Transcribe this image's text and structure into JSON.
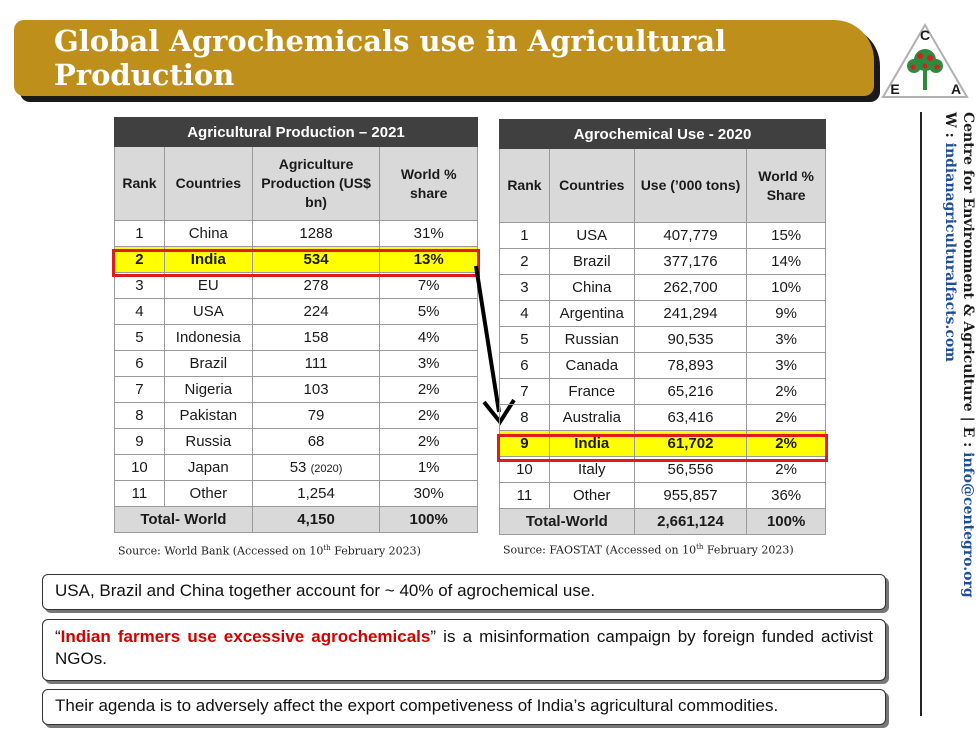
{
  "header": {
    "title": "Global Agrochemicals use in Agricultural Production"
  },
  "logo": {
    "letters": [
      "C",
      "E",
      "A"
    ],
    "colors": {
      "ring": "#b0b0b0",
      "tree": "#2e8b3c",
      "fruit": "#d41f26"
    }
  },
  "sidebar": {
    "org": "Centre for Environment & Agriculture",
    "sep": "|",
    "email_label": "E : ",
    "email": "info@centegro.org",
    "web_label": "W : ",
    "web": "indianagriculturalfacts.com"
  },
  "table_production": {
    "title": "Agricultural Production – 2021",
    "headers": [
      "Rank",
      "Countries",
      "Agriculture Production (US$ bn)",
      "World % share"
    ],
    "rows": [
      {
        "rank": "1",
        "country": "China",
        "value": "1288",
        "share": "31%"
      },
      {
        "rank": "2",
        "country": "India",
        "value": "534",
        "share": "13%"
      },
      {
        "rank": "3",
        "country": "EU",
        "value": "278",
        "share": "7%"
      },
      {
        "rank": "4",
        "country": "USA",
        "value": "224",
        "share": "5%"
      },
      {
        "rank": "5",
        "country": "Indonesia",
        "value": "158",
        "share": "4%"
      },
      {
        "rank": "6",
        "country": "Brazil",
        "value": "111",
        "share": "3%"
      },
      {
        "rank": "7",
        "country": "Nigeria",
        "value": "103",
        "share": "2%"
      },
      {
        "rank": "8",
        "country": "Pakistan",
        "value": "79",
        "share": "2%"
      },
      {
        "rank": "9",
        "country": "Russia",
        "value": "68",
        "share": "2%"
      },
      {
        "rank": "10",
        "country": "Japan",
        "value": "53",
        "note": "(2020)",
        "share": "1%"
      },
      {
        "rank": "11",
        "country": "Other",
        "value": "1,254",
        "share": "30%"
      }
    ],
    "total": {
      "label": "Total- World",
      "value": "4,150",
      "share": "100%"
    },
    "source_prefix": "Source: World Bank (Accessed on 10",
    "source_sup": "th",
    "source_suffix": " February 2023)"
  },
  "table_use": {
    "title": "Agrochemical Use - 2020",
    "headers": [
      "Rank",
      "Countries",
      "Use (’000 tons)",
      "World % Share"
    ],
    "rows": [
      {
        "rank": "1",
        "country": "USA",
        "value": "407,779",
        "share": "15%"
      },
      {
        "rank": "2",
        "country": "Brazil",
        "value": "377,176",
        "share": "14%"
      },
      {
        "rank": "3",
        "country": "China",
        "value": "262,700",
        "share": "10%"
      },
      {
        "rank": "4",
        "country": "Argentina",
        "value": "241,294",
        "share": "9%"
      },
      {
        "rank": "5",
        "country": "Russian",
        "value": "90,535",
        "share": "3%"
      },
      {
        "rank": "6",
        "country": "Canada",
        "value": "78,893",
        "share": "3%"
      },
      {
        "rank": "7",
        "country": "France",
        "value": "65,216",
        "share": "2%"
      },
      {
        "rank": "8",
        "country": "Australia",
        "value": "63,416",
        "share": "2%"
      },
      {
        "rank": "9",
        "country": "India",
        "value": "61,702",
        "share": "2%"
      },
      {
        "rank": "10",
        "country": "Italy",
        "value": "56,556",
        "share": "2%"
      },
      {
        "rank": "11",
        "country": "Other",
        "value": "955,857",
        "share": "36%"
      }
    ],
    "total": {
      "label": "Total-World",
      "value": "2,661,124",
      "share": "100%"
    },
    "source_prefix": "Source: FAOSTAT (Accessed on 10",
    "source_sup": "th",
    "source_suffix": " February 2023)"
  },
  "notes": {
    "n1": "USA, Brazil and China together account for ~ 40% of agrochemical use.",
    "n2_open": "“",
    "n2_red": "Indian farmers use excessive agrochemicals",
    "n2_rest": "” is a misinformation campaign by foreign funded activist NGOs.",
    "n3": "Their agenda is to adversely affect the export competiveness of India’s agricultural commodities."
  }
}
